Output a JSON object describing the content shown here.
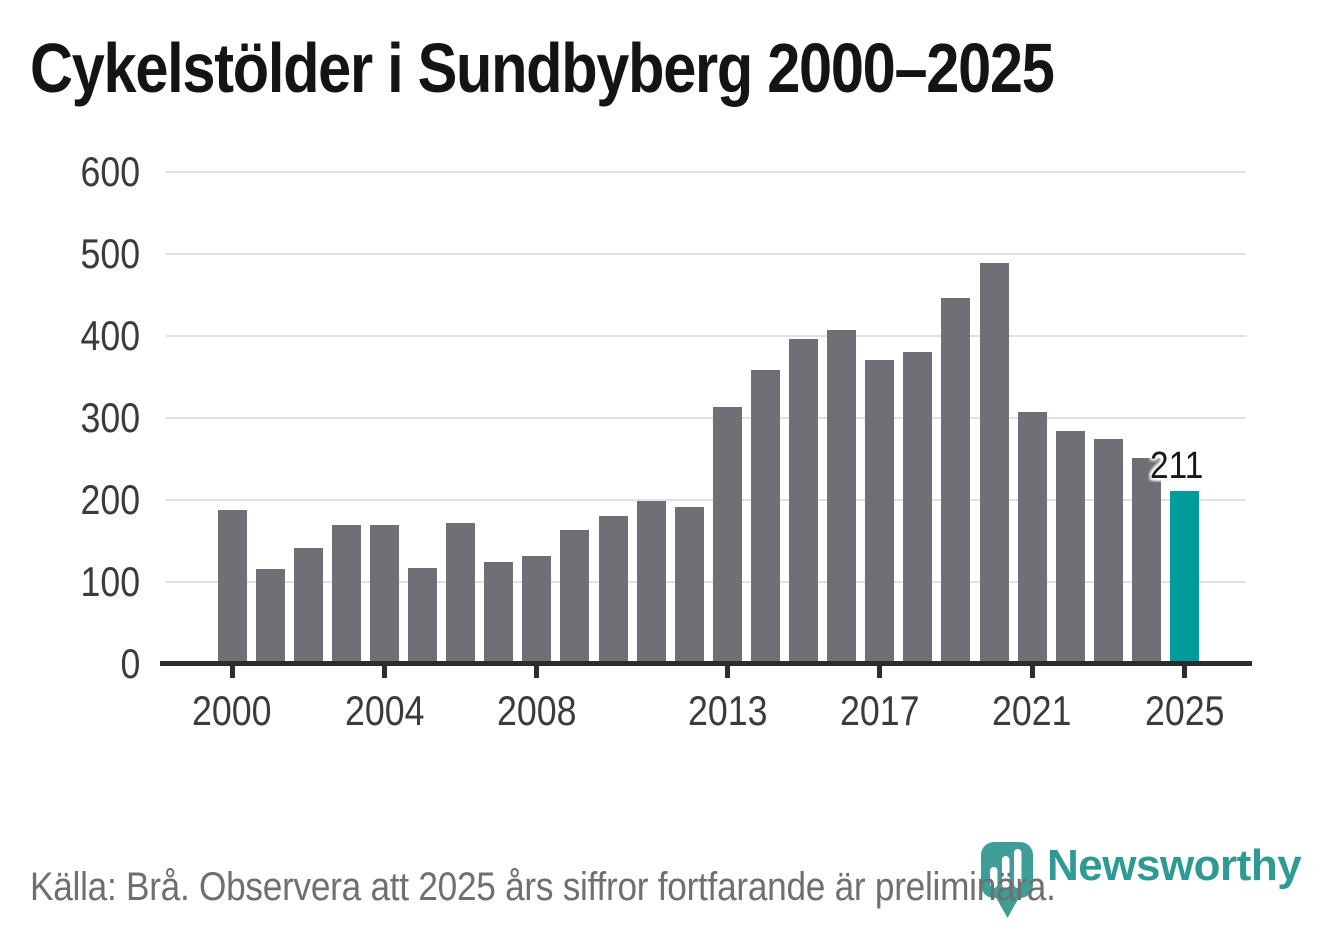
{
  "title": "Cykelstölder i Sundbyberg 2000–2025",
  "footer": {
    "source_note": "Källa: Brå. Observera att 2025 års siffror fortfarande är preliminära."
  },
  "branding": {
    "wordmark": "Newsworthy",
    "logo_icon": "newsworthy-pin-barchart-icon"
  },
  "colors": {
    "bar_default": "#716F76",
    "bar_highlight": "#009C9B",
    "axis": "#2D2D2D",
    "gridline": "#E1E1E1",
    "title_text": "#141414",
    "axis_label_text": "#3B3B3B",
    "annotation_text": "#191919",
    "footer_text": "#6F6F6F",
    "logo_teal": "#3E9D96",
    "wordmark_teal": "#2F9A93"
  },
  "chart_data": {
    "type": "bar",
    "title": "Cykelstölder i Sundbyberg 2000–2025",
    "x": [
      2000,
      2001,
      2002,
      2003,
      2004,
      2005,
      2006,
      2007,
      2008,
      2009,
      2010,
      2011,
      2012,
      2013,
      2014,
      2015,
      2016,
      2017,
      2018,
      2019,
      2020,
      2021,
      2022,
      2023,
      2024,
      2025
    ],
    "values": [
      188,
      116,
      142,
      170,
      169,
      117,
      172,
      124,
      132,
      163,
      181,
      199,
      192,
      314,
      358,
      396,
      407,
      371,
      380,
      446,
      489,
      307,
      284,
      275,
      251,
      211
    ],
    "highlight_year": 2025,
    "annotation": {
      "year": 2025,
      "label": "211"
    },
    "xlabel": "",
    "ylabel": "",
    "xticks": [
      2000,
      2004,
      2008,
      2013,
      2017,
      2021,
      2025
    ],
    "yticks": [
      0,
      100,
      200,
      300,
      400,
      500,
      600
    ],
    "ylim": [
      0,
      600
    ],
    "grid": "horizontal",
    "legend": "none"
  }
}
